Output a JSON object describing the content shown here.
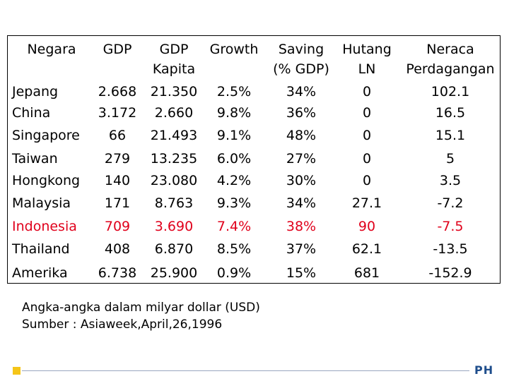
{
  "table": {
    "headers": [
      [
        "Negara"
      ],
      [
        "GDP"
      ],
      [
        "GDP",
        "Kapita"
      ],
      [
        "Growth"
      ],
      [
        "Saving",
        "(% GDP)"
      ],
      [
        "Hutang",
        "LN"
      ],
      [
        "Neraca",
        "Perdagangan"
      ]
    ],
    "rows": [
      {
        "cells": [
          "Jepang",
          "2.668",
          "21.350",
          "2.5%",
          "34%",
          "0",
          "102.1"
        ],
        "highlight": false
      },
      {
        "cells": [
          "China",
          "3.172",
          "2.660",
          "9.8%",
          "36%",
          "0",
          "16.5"
        ],
        "highlight": false
      },
      {
        "cells": [
          "Singapore",
          "66",
          "21.493",
          "9.1%",
          "48%",
          "0",
          "15.1"
        ],
        "highlight": false
      },
      {
        "cells": [
          "Taiwan",
          "279",
          "13.235",
          "6.0%",
          "27%",
          "0",
          "5"
        ],
        "highlight": false
      },
      {
        "cells": [
          "Hongkong",
          "140",
          "23.080",
          "4.2%",
          "30%",
          "0",
          "3.5"
        ],
        "highlight": false
      },
      {
        "cells": [
          "Malaysia",
          "171",
          "8.763",
          "9.3%",
          "34%",
          "27.1",
          "-7.2"
        ],
        "highlight": false
      },
      {
        "cells": [
          "Indonesia",
          "709",
          "3.690",
          "7.4%",
          "38%",
          "90",
          "-7.5"
        ],
        "highlight": true
      },
      {
        "cells": [
          "Thailand",
          "408",
          "6.870",
          "8.5%",
          "37%",
          "62.1",
          "-13.5"
        ],
        "highlight": false
      },
      {
        "cells": [
          "Amerika",
          "6.738",
          "25.900",
          "0.9%",
          "15%",
          "681",
          "-152.9"
        ],
        "highlight": false
      }
    ]
  },
  "note": {
    "line1": "Angka-angka dalam milyar dollar (USD)",
    "line2": "Sumber : Asiaweek,April,26,1996"
  },
  "footer": {
    "mark": "PH"
  },
  "colors": {
    "highlight": "#e0001b",
    "accent_square": "#f5c518",
    "rule": "#9aa7c0",
    "mark": "#1f4e8c"
  }
}
